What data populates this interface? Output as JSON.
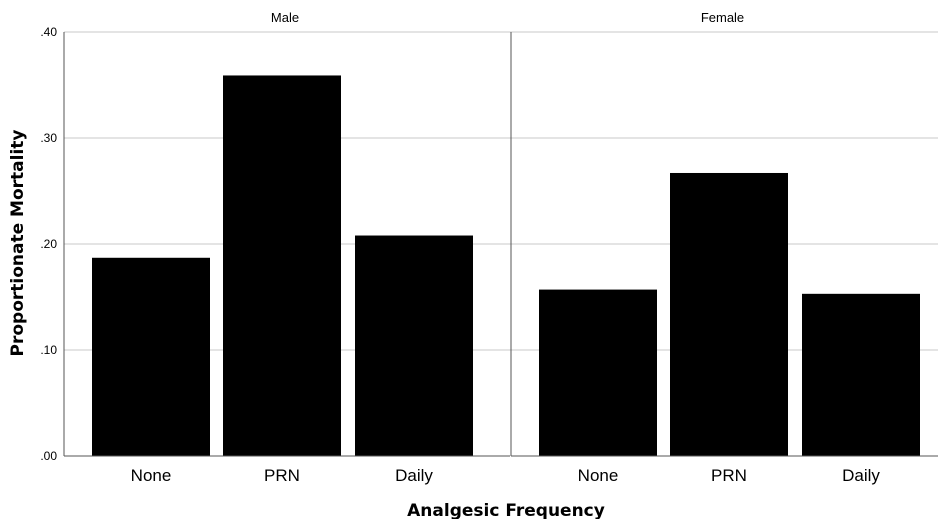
{
  "chart_data": {
    "type": "bar",
    "xlabel": "Analgesic Frequency",
    "ylabel": "Proportionate Mortality",
    "categories": [
      "None",
      "PRN",
      "Daily"
    ],
    "ylim": [
      0,
      0.4
    ],
    "yticks": [
      0.0,
      0.1,
      0.2,
      0.3,
      0.4
    ],
    "ytick_labels": [
      ".00",
      ".10",
      ".20",
      ".30",
      ".40"
    ],
    "grid": true,
    "bar_color": "#000000",
    "panels": [
      {
        "title": "Male",
        "values": [
          0.187,
          0.359,
          0.208
        ]
      },
      {
        "title": "Female",
        "values": [
          0.157,
          0.267,
          0.153
        ]
      }
    ]
  }
}
